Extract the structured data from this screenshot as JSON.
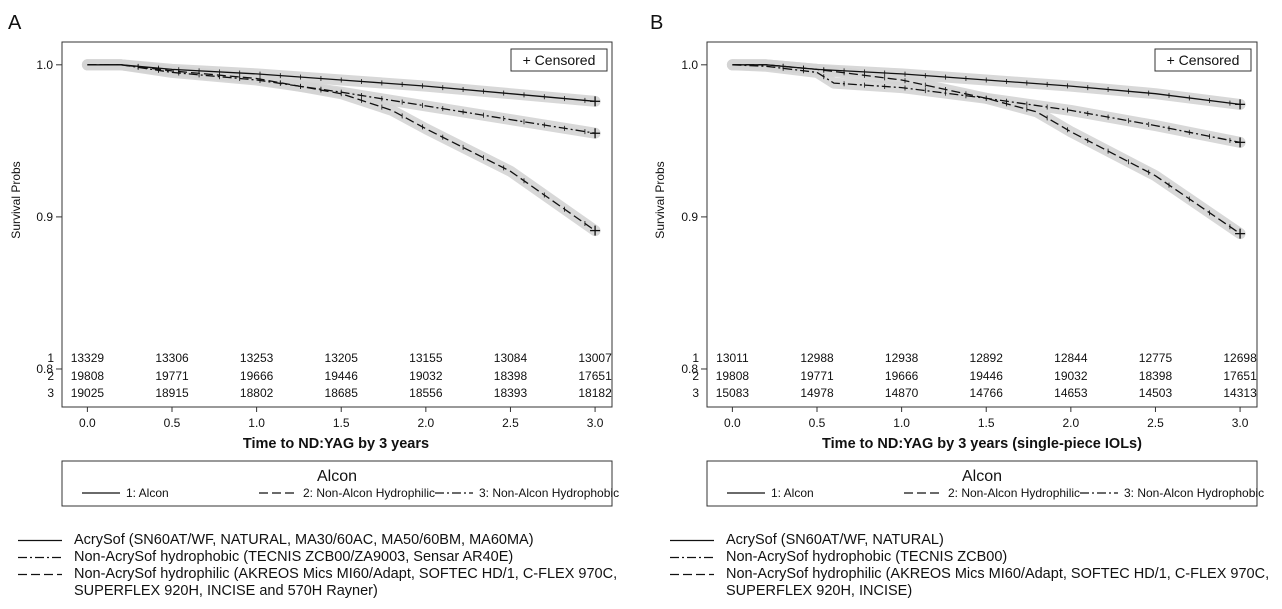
{
  "colors": {
    "line": "#111111",
    "ci_band": "#d4d4d4",
    "frame": "#333333",
    "background": "#ffffff"
  },
  "chart_data": [
    {
      "type": "line",
      "panel_label": "A",
      "xlabel": "Time to ND:YAG by 3 years",
      "ylabel": "Survival Probs",
      "xlim": [
        -0.15,
        3.1
      ],
      "ylim": [
        0.775,
        1.015
      ],
      "xticks": [
        "0.0",
        "0.5",
        "1.0",
        "1.5",
        "2.0",
        "2.5",
        "3.0"
      ],
      "yticks": [
        "0.8",
        "0.9",
        "1.0"
      ],
      "censored_label": "+ Censored",
      "legend_title": "Alcon",
      "legend_items": [
        "1: Alcon",
        "2: Non-Alcon Hydrophilic",
        "3: Non-Alcon Hydrophobic"
      ],
      "series": [
        {
          "name": "1: Alcon",
          "dash": "solid",
          "x": [
            0.0,
            0.2,
            0.5,
            1.0,
            1.5,
            2.0,
            2.5,
            3.0
          ],
          "y": [
            1.0,
            1.0,
            0.997,
            0.994,
            0.99,
            0.986,
            0.981,
            0.976
          ]
        },
        {
          "name": "2: Non-Alcon Hydrophilic",
          "dash": "dash",
          "x": [
            0.0,
            0.2,
            0.5,
            1.0,
            1.5,
            1.8,
            2.0,
            2.5,
            3.0
          ],
          "y": [
            1.0,
            1.0,
            0.996,
            0.991,
            0.981,
            0.97,
            0.958,
            0.93,
            0.891
          ]
        },
        {
          "name": "3: Non-Alcon Hydrophobic",
          "dash": "dashdot",
          "x": [
            0.0,
            0.2,
            0.5,
            1.0,
            1.5,
            2.0,
            2.5,
            3.0
          ],
          "y": [
            1.0,
            1.0,
            0.995,
            0.99,
            0.982,
            0.973,
            0.964,
            0.955
          ]
        }
      ],
      "censored": [
        {
          "x": 3.0,
          "y": 0.976
        },
        {
          "x": 3.0,
          "y": 0.955
        },
        {
          "x": 3.0,
          "y": 0.891
        }
      ],
      "risk_table": {
        "labels": [
          "1",
          "2",
          "3"
        ],
        "rows": [
          [
            "13329",
            "13306",
            "13253",
            "13205",
            "13155",
            "13084",
            "13007"
          ],
          [
            "19808",
            "19771",
            "19666",
            "19446",
            "19032",
            "18398",
            "17651"
          ],
          [
            "19025",
            "18915",
            "18802",
            "18685",
            "18556",
            "18393",
            "18182"
          ]
        ]
      }
    },
    {
      "type": "line",
      "panel_label": "B",
      "xlabel": "Time to ND:YAG by 3 years (single-piece IOLs)",
      "ylabel": "Survival Probs",
      "xlim": [
        -0.15,
        3.1
      ],
      "ylim": [
        0.775,
        1.015
      ],
      "xticks": [
        "0.0",
        "0.5",
        "1.0",
        "1.5",
        "2.0",
        "2.5",
        "3.0"
      ],
      "yticks": [
        "0.8",
        "0.9",
        "1.0"
      ],
      "censored_label": "+ Censored",
      "legend_title": "Alcon",
      "legend_items": [
        "1: Alcon",
        "2: Non-Alcon Hydrophilic",
        "3: Non-Alcon Hydrophobic"
      ],
      "series": [
        {
          "name": "1: Alcon",
          "dash": "solid",
          "x": [
            0.0,
            0.2,
            0.5,
            1.0,
            1.5,
            2.0,
            2.5,
            3.0
          ],
          "y": [
            1.0,
            1.0,
            0.997,
            0.994,
            0.99,
            0.986,
            0.981,
            0.974
          ]
        },
        {
          "name": "2: Non-Alcon Hydrophilic",
          "dash": "dash",
          "x": [
            0.0,
            0.2,
            0.5,
            1.0,
            1.5,
            1.8,
            2.0,
            2.5,
            3.0
          ],
          "y": [
            1.0,
            1.0,
            0.997,
            0.99,
            0.978,
            0.969,
            0.956,
            0.927,
            0.889
          ]
        },
        {
          "name": "3: Non-Alcon Hydrophobic",
          "dash": "dashdot",
          "x": [
            0.0,
            0.2,
            0.5,
            0.6,
            1.0,
            1.5,
            2.0,
            2.5,
            3.0
          ],
          "y": [
            1.0,
            0.999,
            0.995,
            0.988,
            0.985,
            0.978,
            0.97,
            0.96,
            0.949
          ]
        }
      ],
      "censored": [
        {
          "x": 3.0,
          "y": 0.974
        },
        {
          "x": 3.0,
          "y": 0.949
        },
        {
          "x": 3.0,
          "y": 0.889
        }
      ],
      "risk_table": {
        "labels": [
          "1",
          "2",
          "3"
        ],
        "rows": [
          [
            "13011",
            "12988",
            "12938",
            "12892",
            "12844",
            "12775",
            "12698"
          ],
          [
            "19808",
            "19771",
            "19666",
            "19446",
            "19032",
            "18398",
            "17651"
          ],
          [
            "15083",
            "14978",
            "14870",
            "14766",
            "14653",
            "14503",
            "14313"
          ]
        ]
      }
    }
  ],
  "external_legends": [
    {
      "items": [
        {
          "dash": "solid",
          "text": "AcrySof (SN60AT/WF, NATURAL, MA30/60AC, MA50/60BM, MA60MA)"
        },
        {
          "dash": "dashdot",
          "text": "Non-AcrySof hydrophobic (TECNIS ZCB00/ZA9003, Sensar AR40E)"
        },
        {
          "dash": "dash",
          "text": "Non-AcrySof hydrophilic (AKREOS Mics MI60/Adapt, SOFTEC HD/1, C-FLEX 970C, SUPERFLEX 920H, INCISE and 570H Rayner)"
        }
      ]
    },
    {
      "items": [
        {
          "dash": "solid",
          "text": "AcrySof (SN60AT/WF, NATURAL)"
        },
        {
          "dash": "dashdot",
          "text": "Non-AcrySof hydrophobic (TECNIS ZCB00)"
        },
        {
          "dash": "dash",
          "text": "Non-AcrySof hydrophilic (AKREOS Mics MI60/Adapt, SOFTEC HD/1, C-FLEX 970C, SUPERFLEX 920H, INCISE)"
        }
      ]
    }
  ]
}
